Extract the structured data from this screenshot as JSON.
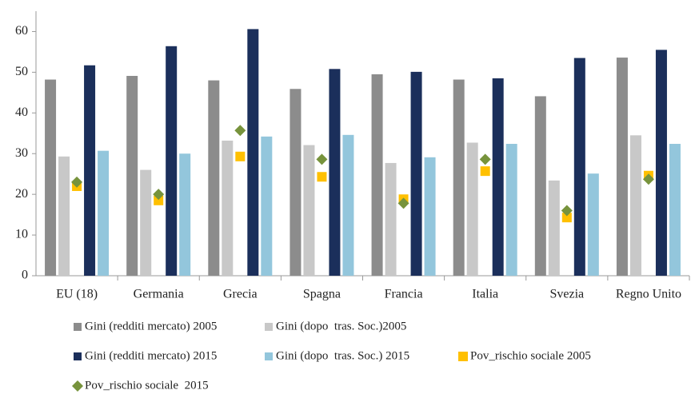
{
  "chart_data": {
    "type": "bar",
    "categories": [
      "EU (18)",
      "Germania",
      "Grecia",
      "Spagna",
      "Francia",
      "Italia",
      "Svezia",
      "Regno Unito"
    ],
    "series": [
      {
        "name": "Gini (redditi mercato) 2005",
        "color": "#8c8c8c",
        "values": [
          48.2,
          49.1,
          48,
          45.9,
          49.5,
          48.2,
          44.1,
          53.6
        ]
      },
      {
        "name": "Gini (dopo  tras. Soc.)2005",
        "color": "#c8c8c8",
        "values": [
          29.3,
          26,
          33.2,
          32.1,
          27.7,
          32.7,
          23.4,
          34.5
        ]
      },
      {
        "name": "Gini (redditi mercato) 2015",
        "color": "#1b2f5b",
        "values": [
          51.7,
          56.4,
          60.6,
          50.8,
          50.1,
          48.5,
          53.5,
          55.5
        ]
      },
      {
        "name": "Gini (dopo  tras. Soc.) 2015",
        "color": "#93c6dc",
        "values": [
          30.7,
          30,
          34.2,
          34.6,
          29.1,
          32.4,
          25.1,
          32.4
        ]
      },
      {
        "name": "Pov_rischio sociale 2005",
        "color": "#ffc000",
        "marker": "square",
        "values": [
          22,
          18.5,
          29.3,
          24.3,
          18.8,
          25.7,
          14.3,
          24.6
        ]
      },
      {
        "name": "Pov_rischio sociale  2015",
        "color": "#77933c",
        "marker": "diamond",
        "values": [
          23,
          20,
          35.7,
          28.6,
          17.8,
          28.6,
          16,
          23.7
        ]
      }
    ],
    "ylim": [
      0,
      65
    ],
    "yticks": [
      0,
      10,
      20,
      30,
      40,
      50,
      60
    ],
    "grid": false
  }
}
